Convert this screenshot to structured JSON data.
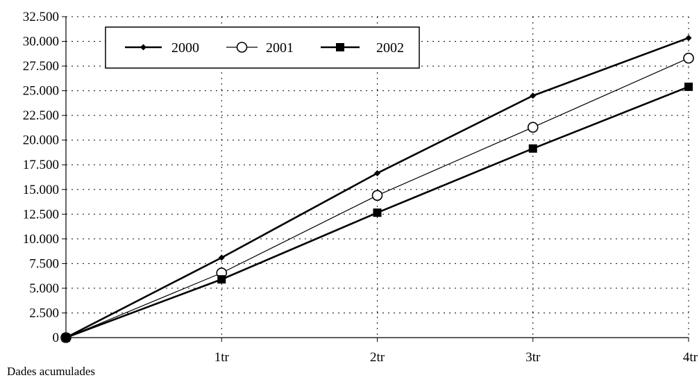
{
  "chart_data": {
    "type": "line",
    "categories": [
      "",
      "1tr",
      "2tr",
      "3tr",
      "4tr"
    ],
    "series": [
      {
        "name": "2000",
        "marker": "diamond",
        "values": [
          0,
          8100,
          16650,
          24500,
          30350
        ]
      },
      {
        "name": "2001",
        "marker": "open-circle",
        "values": [
          0,
          6550,
          14400,
          21300,
          28300
        ]
      },
      {
        "name": "2002",
        "marker": "filled-square",
        "values": [
          0,
          5900,
          12650,
          19150,
          25400
        ]
      }
    ],
    "ylim": [
      0,
      32500
    ],
    "yticks": [
      "0",
      "2.500",
      "5.000",
      "7.500",
      "10.000",
      "12.500",
      "15.000",
      "17.500",
      "20.000",
      "22.500",
      "25.000",
      "27.500",
      "30.000",
      "32.500"
    ],
    "grid": true,
    "legend_position": "top-left",
    "note": "Dades acumulades"
  }
}
